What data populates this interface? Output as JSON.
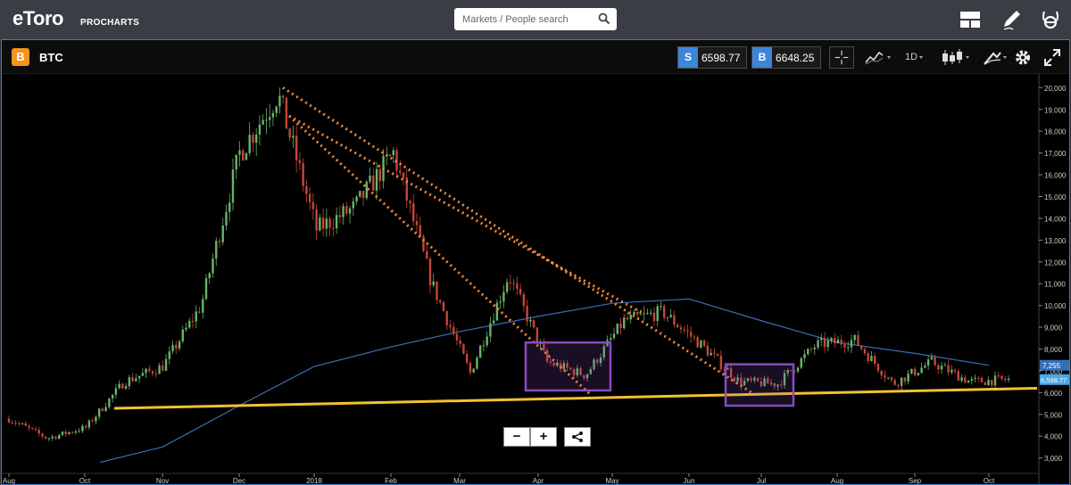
{
  "app": {
    "logo": "eToro",
    "logo_sub": "PROCHARTS"
  },
  "search": {
    "placeholder": "Markets / People search"
  },
  "header_icons": [
    "layout-icon",
    "pen-icon",
    "etoro-e-icon"
  ],
  "instrument": {
    "symbol": "BTC",
    "badge_letter": "B"
  },
  "prices": {
    "sell_tag": "S",
    "sell": "6598.77",
    "buy_tag": "B",
    "buy": "6648.25"
  },
  "toolbar": {
    "timeframe": "1D"
  },
  "colors": {
    "accent": "#3d85d6",
    "bull": "#6ab36a",
    "bear": "#c4473a",
    "support": "#f2c230",
    "trend": "#f08a3a",
    "ma": "#3a6fb5",
    "box": "#8a4bc0",
    "badge": "#f7931a"
  },
  "chart_data": {
    "type": "candlestick",
    "symbol": "BTC",
    "y_axis": {
      "ticks": [
        "20,000",
        "19,000",
        "18,000",
        "17,000",
        "16,000",
        "15,000",
        "14,000",
        "13,000",
        "12,000",
        "11,000",
        "10,000",
        "9,000",
        "8,000",
        "7,000",
        "6,000",
        "5,000",
        "4,000",
        "3,000"
      ],
      "range": [
        2700,
        20300
      ]
    },
    "x_axis": {
      "ticks": [
        "Aug",
        "Oct",
        "Nov",
        "Dec",
        "2018",
        "Feb",
        "Mar",
        "Apr",
        "May",
        "Jun",
        "Jul",
        "Aug",
        "Sep",
        "Oct"
      ]
    },
    "price_labels": {
      "ma": "7,255",
      "last": "6,598.77"
    },
    "close_path": [
      [
        "Aug",
        4800
      ],
      [
        "Sep",
        3900
      ],
      [
        "Oct",
        4400
      ],
      [
        "Nov",
        6500
      ],
      [
        "Nov",
        7200
      ],
      [
        "Dec",
        10000
      ],
      [
        "Dec",
        17000
      ],
      [
        "Dec",
        19700
      ],
      [
        "Dec",
        13500
      ],
      [
        "2018",
        14500
      ],
      [
        "2018",
        17000
      ],
      [
        "Feb",
        11000
      ],
      [
        "Feb",
        6900
      ],
      [
        "Mar",
        11400
      ],
      [
        "Mar",
        7400
      ],
      [
        "Apr",
        6800
      ],
      [
        "Apr",
        9300
      ],
      [
        "May",
        9700
      ],
      [
        "May",
        8200
      ],
      [
        "Jun",
        6500
      ],
      [
        "Jul",
        6400
      ],
      [
        "Jul",
        8200
      ],
      [
        "Aug",
        8400
      ],
      [
        "Aug",
        6400
      ],
      [
        "Sep",
        7400
      ],
      [
        "Sep",
        6500
      ],
      [
        "Oct",
        6600
      ]
    ],
    "moving_average": [
      [
        "Oct",
        2800
      ],
      [
        "Nov",
        3500
      ],
      [
        "Dec",
        5400
      ],
      [
        "2018",
        7200
      ],
      [
        "Feb",
        8100
      ],
      [
        "Mar",
        8800
      ],
      [
        "Apr",
        9500
      ],
      [
        "May",
        10100
      ],
      [
        "Jun",
        10300
      ],
      [
        "Jul",
        9300
      ],
      [
        "Aug",
        8300
      ],
      [
        "Sep",
        7800
      ],
      [
        "Oct",
        7255
      ]
    ],
    "annotations": {
      "support_line": [
        [
          5280,
          6200
        ]
      ],
      "trend_lines": 3,
      "highlight_boxes": 2
    }
  }
}
